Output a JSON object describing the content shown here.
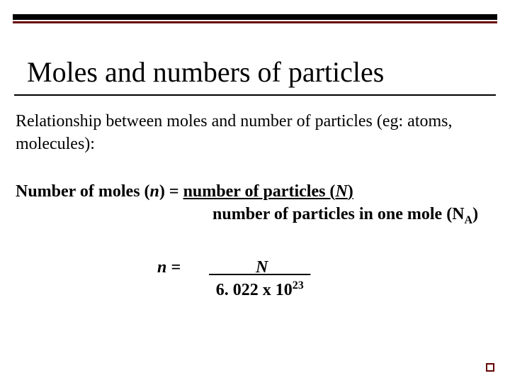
{
  "colors": {
    "accent": "#660000",
    "bar": "#000000",
    "text": "#000000",
    "background": "#ffffff"
  },
  "title": "Moles and numbers of particles",
  "intro": "Relationship between moles and number of particles (eg: atoms, molecules):",
  "formula1": {
    "lhs_prefix": "Number of moles (",
    "lhs_var": "n",
    "lhs_suffix": ") =  ",
    "numerator_prefix": "number of particles (",
    "numerator_var": "N",
    "numerator_suffix": ")",
    "denominator_prefix": "number of particles in one mole (N",
    "denominator_sub": "A",
    "denominator_suffix": ")"
  },
  "formula2": {
    "lhs": "n =",
    "numerator": "           N          ",
    "denom_base": "6. 022 x 10",
    "denom_exp": "23"
  }
}
